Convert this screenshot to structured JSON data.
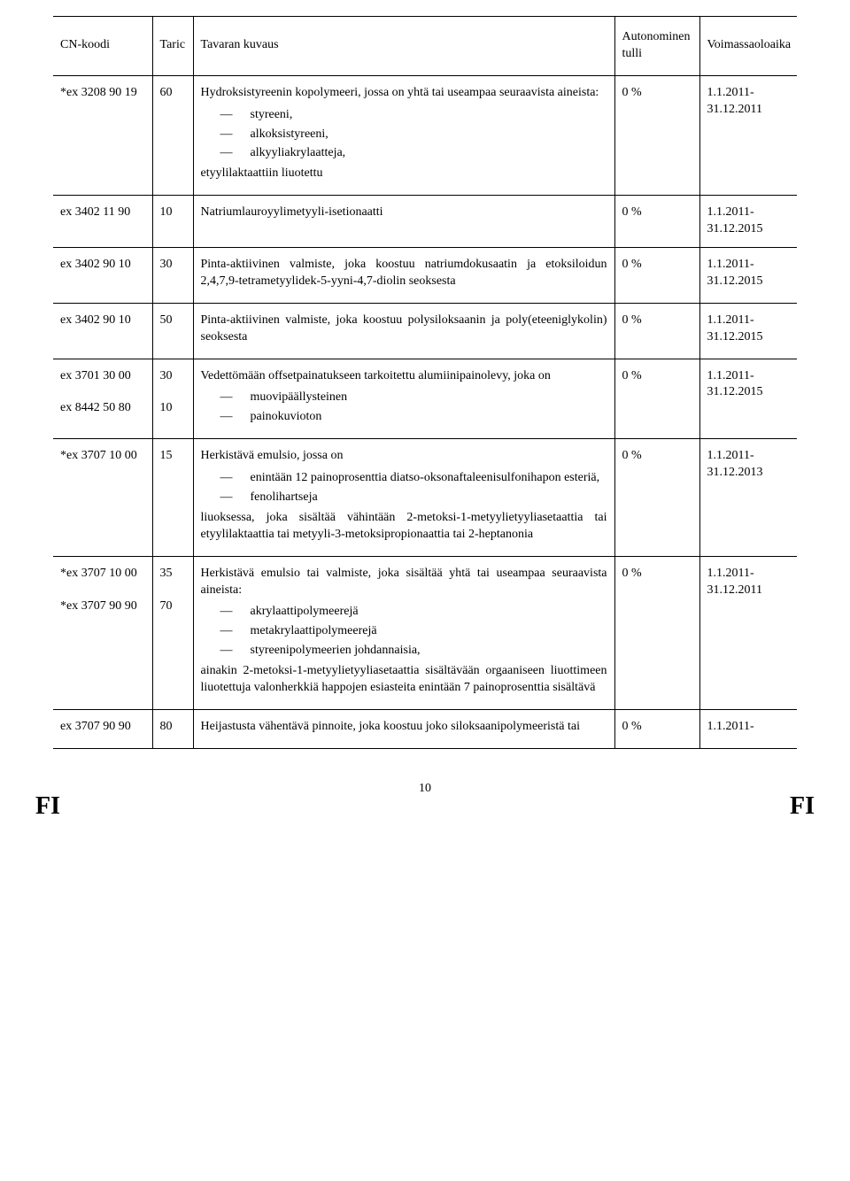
{
  "header": {
    "cn": "CN-koodi",
    "taric": "Taric",
    "desc": "Tavaran kuvaus",
    "duty": "Autonominen tulli",
    "valid": "Voimassaoloaika"
  },
  "rows": [
    {
      "cn": [
        "*ex 3208 90 19"
      ],
      "taric": [
        "60"
      ],
      "lead": "Hydroksistyreenin kopolymeeri, jossa on yhtä tai useampaa seuraavista aineista:",
      "items": [
        "styreeni,",
        "alkoksistyreeni,",
        "alkyyliakrylaatteja,"
      ],
      "trail": "etyylilaktaattiin liuotettu",
      "duty": "0 %",
      "valid": "1.1.2011-31.12.2011"
    },
    {
      "cn": [
        "ex 3402 11 90"
      ],
      "taric": [
        "10"
      ],
      "lead": "Natriumlauroyylimetyyli-isetionaatti",
      "items": [],
      "trail": "",
      "duty": "0 %",
      "valid": "1.1.2011-31.12.2015"
    },
    {
      "cn": [
        "ex 3402 90 10"
      ],
      "taric": [
        "30"
      ],
      "lead": "Pinta-aktiivinen valmiste, joka koostuu natriumdokusaatin ja etoksiloidun 2,4,7,9-tetrametyylidek-5-yyni-4,7-diolin seoksesta",
      "items": [],
      "trail": "",
      "duty": "0 %",
      "valid": "1.1.2011-31.12.2015"
    },
    {
      "cn": [
        "ex 3402 90 10"
      ],
      "taric": [
        "50"
      ],
      "lead": "Pinta-aktiivinen valmiste, joka koostuu polysiloksaanin ja poly(eteeniglykolin) seoksesta",
      "items": [],
      "trail": "",
      "duty": "0 %",
      "valid": "1.1.2011-31.12.2015"
    },
    {
      "cn": [
        "ex 3701 30 00",
        "ex 8442 50 80"
      ],
      "taric": [
        "30",
        "10"
      ],
      "lead": "Vedettömään offsetpainatukseen tarkoitettu alumiinipainolevy, joka on",
      "items": [
        "muovipäällysteinen",
        "painokuvioton"
      ],
      "trail": "",
      "duty": "0 %",
      "valid": "1.1.2011-31.12.2015"
    },
    {
      "cn": [
        "*ex 3707 10 00"
      ],
      "taric": [
        "15"
      ],
      "lead": "Herkistävä emulsio, jossa on",
      "items": [
        "enintään 12 painoprosenttia diatso-oksonaftaleenisulfonihapon esteriä,",
        "fenolihartseja"
      ],
      "trail": "liuoksessa, joka sisältää vähintään 2-metoksi-1-metyylietyyliasetaattia tai etyylilaktaattia tai metyyli-3-metoksipropionaattia tai 2-heptanonia",
      "duty": "0 %",
      "valid": "1.1.2011-31.12.2013"
    },
    {
      "cn": [
        "*ex 3707 10 00",
        "*ex 3707 90 90"
      ],
      "taric": [
        "35",
        "70"
      ],
      "lead": "Herkistävä emulsio tai valmiste, joka sisältää yhtä tai useampaa seuraavista aineista:",
      "items": [
        "akrylaattipolymeerejä",
        "metakrylaattipolymeerejä",
        "styreenipolymeerien johdannaisia,"
      ],
      "trail": "ainakin 2-metoksi-1-metyylietyyliasetaattia sisältävään orgaaniseen liuottimeen liuotettuja valonherkkiä happojen esiasteita enintään 7 painoprosenttia sisältävä",
      "duty": "0 %",
      "valid": "1.1.2011-31.12.2011"
    },
    {
      "cn": [
        "ex 3707 90 90"
      ],
      "taric": [
        "80"
      ],
      "lead": "Heijastusta vähentävä pinnoite, joka koostuu joko siloksaanipolymeeristä tai",
      "items": [],
      "trail": "",
      "duty": "0 %",
      "valid": "1.1.2011-"
    }
  ],
  "footer": {
    "page": "10",
    "left": "FI",
    "right": "FI"
  }
}
